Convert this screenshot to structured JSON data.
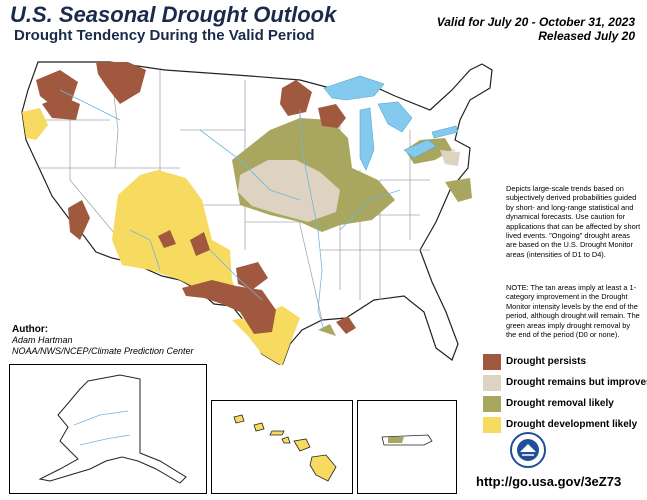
{
  "header": {
    "title": "U.S. Seasonal Drought Outlook",
    "subtitle": "Drought Tendency During the Valid Period",
    "valid": "Valid for July 20 - October 31, 2023",
    "released": "Released July 20"
  },
  "description": "Depicts large-scale trends based on subjectively derived probabilities guided by short- and long-range statistical and dynamical forecasts. Use caution for applications that can be affected by short lived events. \"Ongoing\" drought areas are based on the U.S. Drought Monitor areas (intensities of D1 to D4).",
  "note": "NOTE: The tan areas imply at least a 1-category improvement in the Drought Monitor intensity levels by the end of the period, although drought will remain. The green areas imply drought removal by the end of the period (D0 or none).",
  "legend": [
    {
      "label": "Drought persists",
      "color": "#a0593e"
    },
    {
      "label": "Drought remains but improves",
      "color": "#ddd3c0"
    },
    {
      "label": "Drought removal likely",
      "color": "#a9a660"
    },
    {
      "label": "Drought development likely",
      "color": "#f7da60"
    }
  ],
  "author": {
    "heading": "Author:",
    "name": "Adam Hartman",
    "org": "NOAA/NWS/NCEP/Climate Prediction Center"
  },
  "url": "http://go.usa.gov/3eZ73",
  "colors": {
    "water": "#84c9ee",
    "river": "#6fb6e0",
    "border": "#a8a8a8"
  }
}
